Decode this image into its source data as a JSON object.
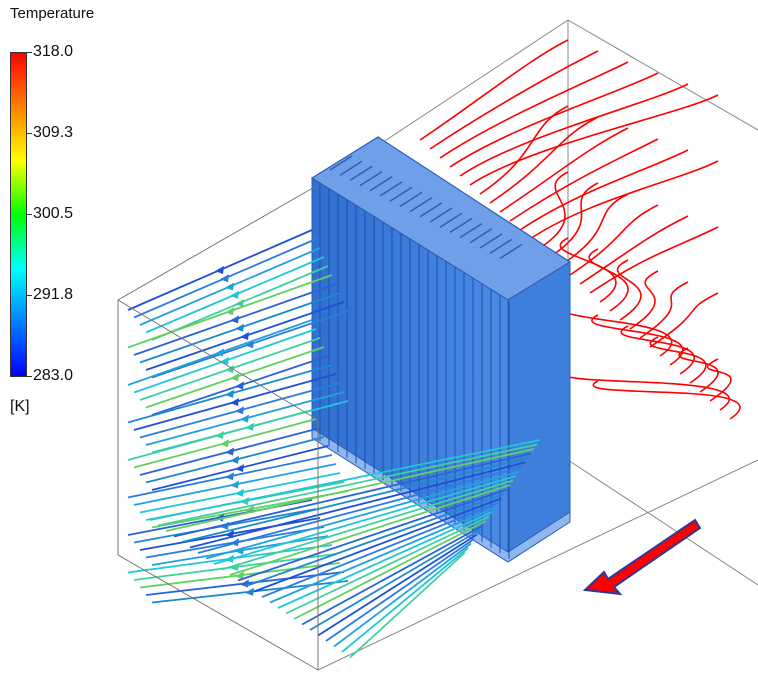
{
  "legend": {
    "title": "Temperature",
    "unit": "[K]",
    "ticks": [
      "318.0",
      "309.3",
      "300.5",
      "291.8",
      "283.0"
    ],
    "colormap": [
      "#ff0000",
      "#ff8000",
      "#ffff00",
      "#00ff00",
      "#00ffff",
      "#0080ff",
      "#0000ff"
    ],
    "min": 283.0,
    "max": 318.0
  },
  "scene": {
    "hot_stream_color": "#ff0000",
    "exchanger_color": "#3b7bd6",
    "flow_arrow_color": "#ff0000",
    "flow_arrow_outline": "#2a3a9a"
  }
}
